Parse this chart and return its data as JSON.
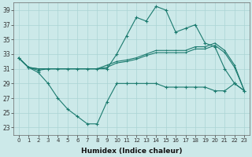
{
  "x": [
    0,
    1,
    2,
    3,
    4,
    5,
    6,
    7,
    8,
    9,
    10,
    11,
    12,
    13,
    14,
    15,
    16,
    17,
    18,
    19,
    20,
    21,
    22,
    23
  ],
  "y_peak": [
    32.5,
    31.2,
    30.8,
    31.0,
    31.0,
    31.0,
    31.0,
    31.0,
    31.0,
    31.0,
    33.0,
    35.5,
    38.0,
    37.5,
    39.5,
    39.0,
    36.0,
    36.5,
    37.0,
    34.5,
    34.0,
    31.0,
    29.0,
    28.0
  ],
  "y_low": [
    32.5,
    31.2,
    30.5,
    29.0,
    27.0,
    25.5,
    24.5,
    23.5,
    23.5,
    26.5,
    29.0,
    29.0,
    29.0,
    29.0,
    29.0,
    28.5,
    28.5,
    28.5,
    28.5,
    28.5,
    28.0,
    28.0,
    29.0,
    28.0
  ],
  "y_mid1": [
    32.5,
    31.2,
    31.0,
    31.0,
    31.0,
    31.0,
    31.0,
    31.0,
    31.0,
    31.5,
    32.0,
    32.2,
    32.5,
    33.0,
    33.5,
    33.5,
    33.5,
    33.5,
    34.0,
    34.0,
    34.5,
    33.5,
    31.5,
    28.0
  ],
  "y_mid2": [
    32.5,
    31.2,
    31.0,
    31.0,
    31.0,
    31.0,
    31.0,
    31.0,
    31.0,
    31.2,
    31.8,
    32.0,
    32.3,
    32.8,
    33.2,
    33.2,
    33.2,
    33.2,
    33.7,
    33.7,
    34.2,
    33.2,
    31.2,
    28.0
  ],
  "xlabel": "Humidex (Indice chaleur)",
  "bg_color": "#cce9e9",
  "grid_color": "#aad4d4",
  "line_color": "#1a7a6e",
  "ylim": [
    22,
    40
  ],
  "yticks": [
    23,
    25,
    27,
    29,
    31,
    33,
    35,
    37,
    39
  ],
  "xlim": [
    -0.5,
    23.5
  ]
}
